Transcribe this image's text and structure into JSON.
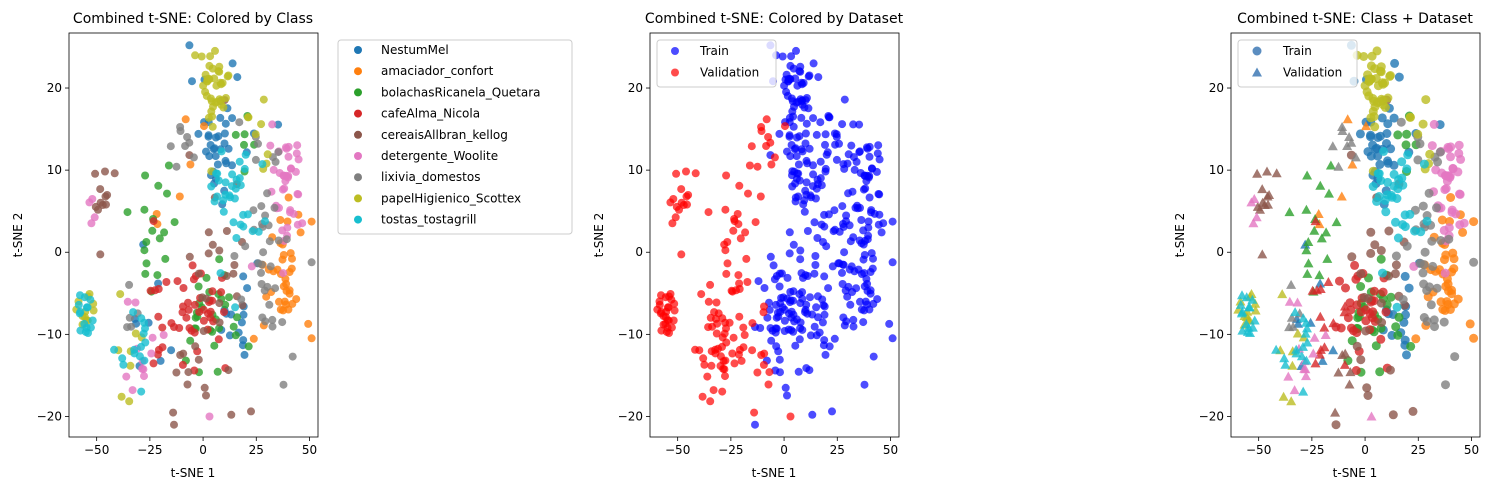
{
  "colors": {
    "NestumMel": "#1f77b4",
    "amaciador_confort": "#ff7f0e",
    "bolachasRicanela_Quetara": "#2ca02c",
    "cafeAlma_Nicola": "#d62728",
    "cereaisAllbran_kellog": "#8c564b",
    "detergente_Woolite": "#e377c2",
    "lixivia_domestos": "#7f7f7f",
    "papelHigienico_Scottex": "#bcbd22",
    "tostas_tostagrill": "#17becf",
    "Train": "#0000ff",
    "Validation": "#ff0000",
    "legend_marker_neutral": "#5b8dc0"
  },
  "chart_data": [
    {
      "type": "scatter",
      "title": "Combined t-SNE: Colored by Class",
      "xlabel": "t-SNE 1",
      "ylabel": "t-SNE 2",
      "xlim": [
        -63,
        54
      ],
      "ylim": [
        -22.5,
        26.7
      ],
      "xticks": [
        -50,
        -25,
        0,
        25,
        50
      ],
      "yticks": [
        -20,
        -10,
        0,
        10,
        20
      ],
      "legend": {
        "placement": "outside-right",
        "entries": [
          "NestumMel",
          "amaciador_confort",
          "bolachasRicanela_Quetara",
          "cafeAlma_Nicola",
          "cereaisAllbran_kellog",
          "detergente_Woolite",
          "lixivia_domestos",
          "papelHigienico_Scottex",
          "tostas_tostagrill"
        ]
      },
      "clusters": [
        {
          "class": "NestumMel",
          "cx": 8,
          "cy": 14,
          "sx": 7,
          "sy": 4,
          "n": 40,
          "split": "train"
        },
        {
          "class": "NestumMel",
          "cx": 15,
          "cy": -8,
          "sx": 6,
          "sy": 3,
          "n": 15,
          "split": "train"
        },
        {
          "class": "NestumMel",
          "cx": -25,
          "cy": -9,
          "sx": 6,
          "sy": 3,
          "n": 8,
          "split": "val"
        },
        {
          "class": "amaciador_confort",
          "cx": 37,
          "cy": -3,
          "sx": 7,
          "sy": 5,
          "n": 40,
          "split": "train"
        },
        {
          "class": "amaciador_confort",
          "cx": -15,
          "cy": 8,
          "sx": 8,
          "sy": 4,
          "n": 6,
          "split": "val"
        },
        {
          "class": "bolachasRicanela_Quetara",
          "cx": 5,
          "cy": -8,
          "sx": 9,
          "sy": 4,
          "n": 30,
          "split": "train"
        },
        {
          "class": "bolachasRicanela_Quetara",
          "cx": -22,
          "cy": 3,
          "sx": 6,
          "sy": 5,
          "n": 18,
          "split": "val"
        },
        {
          "class": "bolachasRicanela_Quetara",
          "cx": 20,
          "cy": 13,
          "sx": 3,
          "sy": 2,
          "n": 6,
          "split": "train"
        },
        {
          "class": "cafeAlma_Nicola",
          "cx": 0,
          "cy": -7,
          "sx": 6,
          "sy": 3,
          "n": 35,
          "split": "train"
        },
        {
          "class": "cafeAlma_Nicola",
          "cx": -20,
          "cy": -6,
          "sx": 6,
          "sy": 4,
          "n": 15,
          "split": "val"
        },
        {
          "class": "cereaisAllbran_kellog",
          "cx": 8,
          "cy": -3,
          "sx": 8,
          "sy": 7,
          "n": 30,
          "split": "train"
        },
        {
          "class": "cereaisAllbran_kellog",
          "cx": -47,
          "cy": 6,
          "sx": 3,
          "sy": 3,
          "n": 12,
          "split": "val"
        },
        {
          "class": "cereaisAllbran_kellog",
          "cx": -12,
          "cy": -15,
          "sx": 3,
          "sy": 2,
          "n": 6,
          "split": "val"
        },
        {
          "class": "detergente_Woolite",
          "cx": 40,
          "cy": 8,
          "sx": 4,
          "sy": 4,
          "n": 40,
          "split": "train"
        },
        {
          "class": "detergente_Woolite",
          "cx": -30,
          "cy": -12,
          "sx": 6,
          "sy": 3,
          "n": 12,
          "split": "val"
        },
        {
          "class": "detergente_Woolite",
          "cx": -53,
          "cy": 5,
          "sx": 3,
          "sy": 2,
          "n": 4,
          "split": "val"
        },
        {
          "class": "lixivia_domestos",
          "cx": 30,
          "cy": 0,
          "sx": 7,
          "sy": 7,
          "n": 40,
          "split": "train"
        },
        {
          "class": "lixivia_domestos",
          "cx": -8,
          "cy": 12,
          "sx": 3,
          "sy": 2,
          "n": 8,
          "split": "val"
        },
        {
          "class": "lixivia_domestos",
          "cx": -35,
          "cy": -8,
          "sx": 3,
          "sy": 2,
          "n": 5,
          "split": "val"
        },
        {
          "class": "papelHigienico_Scottex",
          "cx": 5,
          "cy": 20,
          "sx": 5,
          "sy": 2.5,
          "n": 40,
          "split": "train"
        },
        {
          "class": "papelHigienico_Scottex",
          "cx": -55,
          "cy": -7,
          "sx": 2,
          "sy": 2,
          "n": 12,
          "split": "val"
        },
        {
          "class": "papelHigienico_Scottex",
          "cx": -35,
          "cy": -12,
          "sx": 3,
          "sy": 3,
          "n": 8,
          "split": "val"
        },
        {
          "class": "papelHigienico_Scottex",
          "cx": 28,
          "cy": 14,
          "sx": 4,
          "sy": 3,
          "n": 8,
          "split": "train"
        },
        {
          "class": "tostas_tostagrill",
          "cx": 15,
          "cy": 6,
          "sx": 7,
          "sy": 4,
          "n": 35,
          "split": "train"
        },
        {
          "class": "tostas_tostagrill",
          "cx": -55,
          "cy": -8,
          "sx": 2,
          "sy": 2,
          "n": 15,
          "split": "val"
        },
        {
          "class": "tostas_tostagrill",
          "cx": -32,
          "cy": -12,
          "sx": 4,
          "sy": 3,
          "n": 15,
          "split": "val"
        }
      ],
      "extra_points": [
        {
          "class": "detergente_Woolite",
          "x": 3,
          "y": -20,
          "split": "val"
        }
      ]
    },
    {
      "type": "scatter",
      "title": "Combined t-SNE: Colored by Dataset",
      "xlabel": "t-SNE 1",
      "ylabel": "t-SNE 2",
      "xlim": [
        -63,
        54
      ],
      "ylim": [
        -22.5,
        26.7
      ],
      "xticks": [
        -50,
        -25,
        0,
        25,
        50
      ],
      "yticks": [
        -20,
        -10,
        0,
        10,
        20
      ],
      "legend": {
        "placement": "upper-left",
        "entries": [
          "Train",
          "Validation"
        ]
      }
    },
    {
      "type": "scatter",
      "title": "Combined t-SNE: Class + Dataset",
      "xlabel": "t-SNE 1",
      "ylabel": "t-SNE 2",
      "xlim": [
        -63,
        54
      ],
      "ylim": [
        -22.5,
        26.7
      ],
      "xticks": [
        -50,
        -25,
        0,
        25,
        50
      ],
      "yticks": [
        -20,
        -10,
        0,
        10,
        20
      ],
      "legend": {
        "placement": "upper-left",
        "entries": [
          "Train",
          "Validation"
        ],
        "markers": [
          "circle",
          "triangle"
        ]
      }
    }
  ]
}
